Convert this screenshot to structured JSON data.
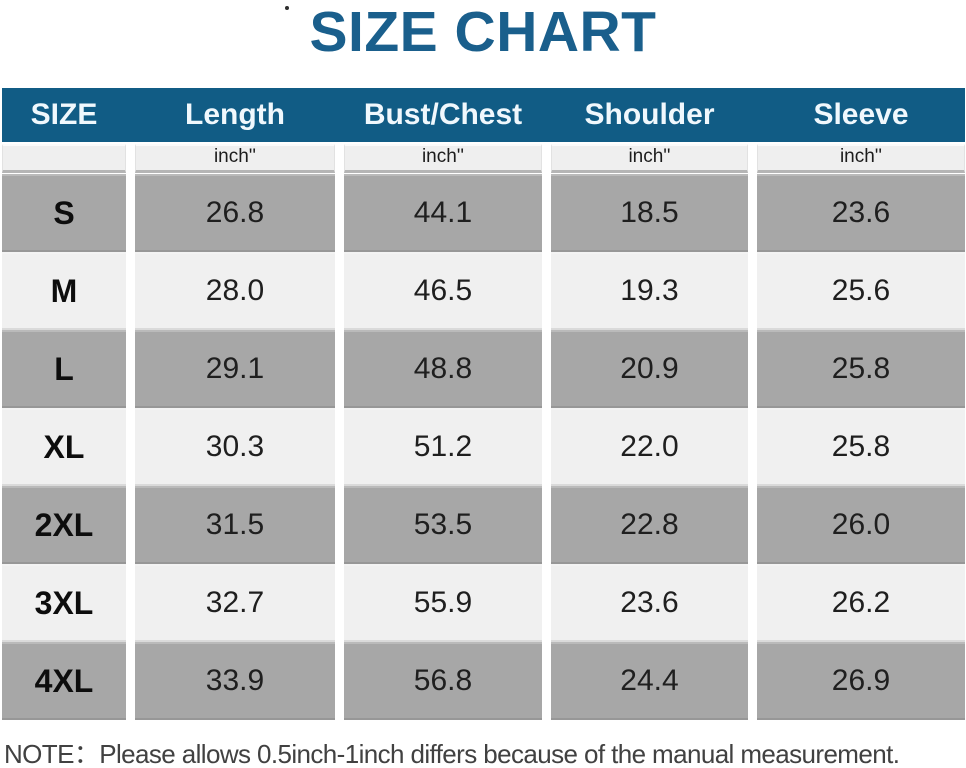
{
  "title": "SIZE CHART",
  "note": "NOTE：Please allows 0.5inch-1inch differs because of the manual measurement.",
  "colors": {
    "header_bg": "#115c85",
    "title_color": "#1a5f8c",
    "row_gray": "#a7a7a7",
    "row_light": "#f0f0f0",
    "subheader_bg": "#efefef"
  },
  "chart_data": {
    "type": "table",
    "title": "SIZE CHART",
    "units": "inches",
    "columns": [
      "SIZE",
      "Length",
      "Bust/Chest",
      "Shoulder",
      "Sleeve"
    ],
    "unit_row": [
      "",
      "inch''",
      "inch''",
      "inch''",
      "inch''"
    ],
    "rows": [
      {
        "size": "S",
        "values": [
          "26.8",
          "44.1",
          "18.5",
          "23.6"
        ]
      },
      {
        "size": "M",
        "values": [
          "28.0",
          "46.5",
          "19.3",
          "25.6"
        ]
      },
      {
        "size": "L",
        "values": [
          "29.1",
          "48.8",
          "20.9",
          "25.8"
        ]
      },
      {
        "size": "XL",
        "values": [
          "30.3",
          "51.2",
          "22.0",
          "25.8"
        ]
      },
      {
        "size": "2XL",
        "values": [
          "31.5",
          "53.5",
          "22.8",
          "26.0"
        ]
      },
      {
        "size": "3XL",
        "values": [
          "32.7",
          "55.9",
          "23.6",
          "26.2"
        ]
      },
      {
        "size": "4XL",
        "values": [
          "33.9",
          "56.8",
          "24.4",
          "26.9"
        ]
      }
    ],
    "note": "NOTE：Please allows 0.5inch-1inch differs because of the manual measurement.",
    "layout_hints": {
      "striped": true,
      "stripe_order": [
        "gray",
        "light"
      ],
      "header_style": "dark-teal-bar"
    }
  }
}
